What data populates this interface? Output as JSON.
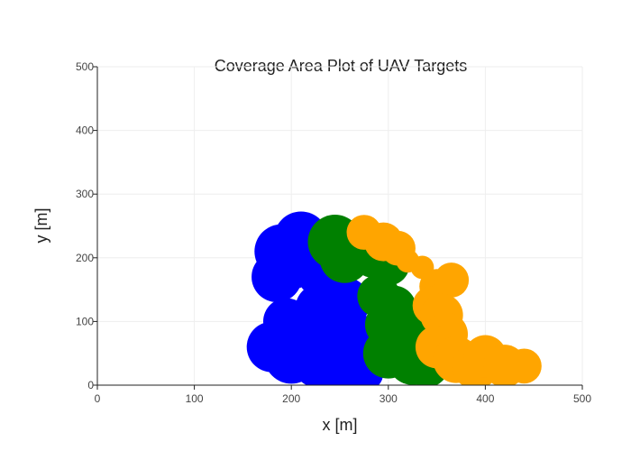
{
  "chart_data": {
    "type": "scatter",
    "title": "Coverage Area Plot of UAV Targets",
    "xlabel": "x [m]",
    "ylabel": "y [m]",
    "xlim": [
      0,
      500
    ],
    "ylim": [
      0,
      500
    ],
    "xticks": [
      "0",
      "100",
      "200",
      "300",
      "400",
      "500"
    ],
    "yticks": [
      "0",
      "100",
      "200",
      "300",
      "400",
      "500"
    ],
    "grid": true,
    "legend": "none",
    "series": [
      {
        "color": "#0000ff",
        "points": [
          [
            190,
            210,
            28
          ],
          [
            210,
            230,
            28
          ],
          [
            200,
            190,
            26
          ],
          [
            185,
            170,
            26
          ],
          [
            215,
            200,
            24
          ],
          [
            230,
            175,
            24
          ],
          [
            240,
            150,
            26
          ],
          [
            255,
            130,
            26
          ],
          [
            250,
            100,
            28
          ],
          [
            230,
            120,
            26
          ],
          [
            195,
            100,
            24
          ],
          [
            180,
            60,
            26
          ],
          [
            200,
            45,
            28
          ],
          [
            230,
            40,
            30
          ],
          [
            255,
            30,
            30
          ],
          [
            240,
            70,
            26
          ],
          [
            260,
            60,
            26
          ],
          [
            275,
            20,
            20
          ],
          [
            210,
            70,
            24
          ]
        ]
      },
      {
        "color": "#008000",
        "points": [
          [
            245,
            225,
            28
          ],
          [
            265,
            215,
            28
          ],
          [
            255,
            200,
            26
          ],
          [
            285,
            205,
            24
          ],
          [
            300,
            190,
            22
          ],
          [
            290,
            140,
            22
          ],
          [
            305,
            120,
            24
          ],
          [
            300,
            95,
            24
          ],
          [
            310,
            70,
            26
          ],
          [
            300,
            50,
            26
          ],
          [
            325,
            40,
            26
          ],
          [
            330,
            60,
            24
          ],
          [
            320,
            90,
            24
          ],
          [
            340,
            30,
            22
          ]
        ]
      },
      {
        "color": "#ffa500",
        "points": [
          [
            275,
            240,
            18
          ],
          [
            295,
            225,
            20
          ],
          [
            310,
            215,
            18
          ],
          [
            320,
            195,
            12
          ],
          [
            335,
            185,
            12
          ],
          [
            350,
            155,
            18
          ],
          [
            365,
            165,
            18
          ],
          [
            345,
            125,
            20
          ],
          [
            355,
            110,
            22
          ],
          [
            360,
            80,
            22
          ],
          [
            350,
            60,
            22
          ],
          [
            370,
            40,
            24
          ],
          [
            390,
            30,
            24
          ],
          [
            400,
            45,
            22
          ],
          [
            420,
            30,
            22
          ],
          [
            440,
            30,
            18
          ]
        ]
      }
    ]
  }
}
